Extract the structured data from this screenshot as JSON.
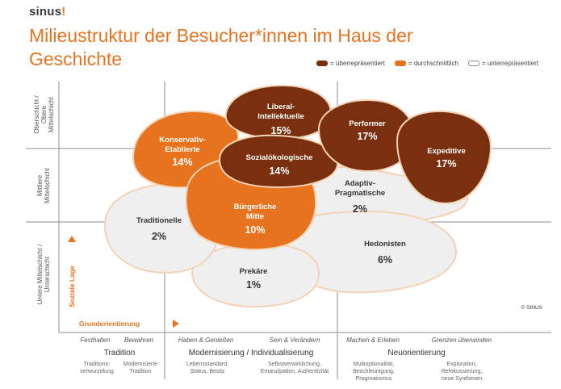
{
  "logo": {
    "text": "sinus",
    "mark": "!"
  },
  "title": "Milieustruktur der Besucher*innen im Haus der Geschichte",
  "legend": [
    {
      "label": "= überrepräsentiert",
      "color": "#7a300f"
    },
    {
      "label": "= durchschnittlich",
      "color": "#e8731f"
    },
    {
      "label": "= unterrepräsentiert",
      "color": "#ffffff"
    }
  ],
  "y_axis": {
    "levels": [
      "Oberschicht / Obere Mittelschicht",
      "Mittlere Mittelschicht",
      "Untere Mittelschicht / Unterschicht"
    ],
    "label": "Soziale Lage"
  },
  "x_axis": {
    "label": "Grundorientierung",
    "segments": [
      "Festhalten",
      "Bewahren",
      "Haben & Genießen",
      "Sein & Verändern",
      "Machen & Erleben",
      "Grenzen überwinden"
    ],
    "groups": [
      "Tradition",
      "Modernisierung / Individualisierung",
      "Neuorientierung"
    ],
    "subs": [
      "Traditions-verwurzelung",
      "Modernisierte Tradition",
      "Lebensstandard, Status, Besitz",
      "Selbstverwirklichung, Emanzipation, Authentizität",
      "Multioptionalität, Beschleunigung, Pragmatismus",
      "Exploration, Refokussierung, neue Synthesen"
    ]
  },
  "copyright": "© SINUS",
  "milieus": [
    {
      "key": "traditionelle",
      "name": "Traditionelle",
      "pct": "2%",
      "status": "unterrepräsentiert"
    },
    {
      "key": "prekaere",
      "name": "Prekäre",
      "pct": "1%",
      "status": "unterrepräsentiert"
    },
    {
      "key": "hedonisten",
      "name": "Hedonisten",
      "pct": "6%",
      "status": "unterrepräsentiert"
    },
    {
      "key": "adaptiv",
      "name": "Adaptiv-Pragmatische",
      "pct": "2%",
      "status": "unterrepräsentiert"
    },
    {
      "key": "buergerliche",
      "name": "Bürgerliche Mitte",
      "pct": "10%",
      "status": "durchschnittlich"
    },
    {
      "key": "konservativ",
      "name": "Konservativ-Etablierte",
      "pct": "14%",
      "status": "durchschnittlich"
    },
    {
      "key": "liberal",
      "name": "Liberal-Intellektuelle",
      "pct": "15%",
      "status": "überrepräsentiert"
    },
    {
      "key": "sozialoeko",
      "name": "Sozialökologische",
      "pct": "14%",
      "status": "überrepräsentiert"
    },
    {
      "key": "performer",
      "name": "Performer",
      "pct": "17%",
      "status": "überrepräsentiert"
    },
    {
      "key": "expeditive",
      "name": "Expeditive",
      "pct": "17%",
      "status": "überrepräsentiert"
    }
  ]
}
